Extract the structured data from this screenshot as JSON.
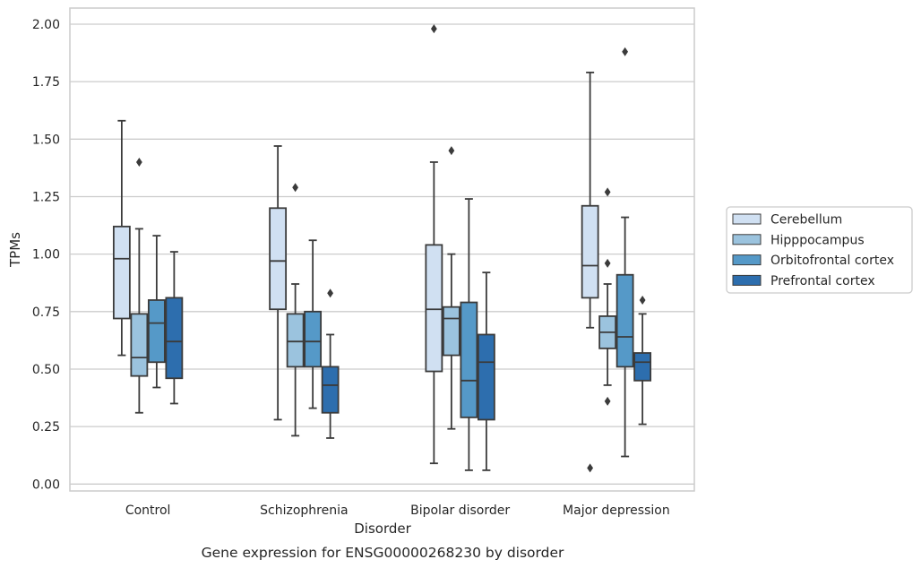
{
  "chart_data": {
    "type": "boxplot",
    "title": "",
    "caption": "Gene expression for ENSG00000268230 by disorder",
    "xlabel": "Disorder",
    "ylabel": "TPMs",
    "ylim": [
      -0.03,
      2.07
    ],
    "yticks": [
      0.0,
      0.25,
      0.5,
      0.75,
      1.0,
      1.25,
      1.5,
      1.75,
      2.0
    ],
    "ytick_labels": [
      "0.00",
      "0.25",
      "0.50",
      "0.75",
      "1.00",
      "1.25",
      "1.50",
      "1.75",
      "2.00"
    ],
    "categories": [
      "Control",
      "Schizophrenia",
      "Bipolar disorder",
      "Major depression"
    ],
    "grid": "horizontal",
    "legend_position": "right",
    "series": [
      {
        "name": "Cerebellum",
        "color": "#d0e0f2",
        "boxes": [
          {
            "whislo": 0.56,
            "q1": 0.72,
            "med": 0.98,
            "q3": 1.12,
            "whishi": 1.58,
            "fliers": []
          },
          {
            "whislo": 0.28,
            "q1": 0.76,
            "med": 0.97,
            "q3": 1.2,
            "whishi": 1.47,
            "fliers": []
          },
          {
            "whislo": 0.09,
            "q1": 0.49,
            "med": 0.76,
            "q3": 1.04,
            "whishi": 1.4,
            "fliers": [
              1.98
            ]
          },
          {
            "whislo": 0.68,
            "q1": 0.81,
            "med": 0.95,
            "q3": 1.21,
            "whishi": 1.79,
            "fliers": [
              0.07
            ]
          }
        ]
      },
      {
        "name": "Hipppocampus",
        "color": "#9bc3de",
        "boxes": [
          {
            "whislo": 0.31,
            "q1": 0.47,
            "med": 0.55,
            "q3": 0.74,
            "whishi": 1.11,
            "fliers": [
              1.4
            ]
          },
          {
            "whislo": 0.21,
            "q1": 0.51,
            "med": 0.62,
            "q3": 0.74,
            "whishi": 0.87,
            "fliers": [
              1.29
            ]
          },
          {
            "whislo": 0.24,
            "q1": 0.56,
            "med": 0.72,
            "q3": 0.77,
            "whishi": 1.0,
            "fliers": [
              1.45
            ]
          },
          {
            "whislo": 0.43,
            "q1": 0.59,
            "med": 0.66,
            "q3": 0.73,
            "whishi": 0.87,
            "fliers": [
              1.27,
              0.96,
              0.36
            ]
          }
        ]
      },
      {
        "name": "Orbitofrontal cortex",
        "color": "#5599c8",
        "boxes": [
          {
            "whislo": 0.42,
            "q1": 0.53,
            "med": 0.7,
            "q3": 0.8,
            "whishi": 1.08,
            "fliers": []
          },
          {
            "whislo": 0.33,
            "q1": 0.51,
            "med": 0.62,
            "q3": 0.75,
            "whishi": 1.06,
            "fliers": []
          },
          {
            "whislo": 0.06,
            "q1": 0.29,
            "med": 0.45,
            "q3": 0.79,
            "whishi": 1.24,
            "fliers": []
          },
          {
            "whislo": 0.12,
            "q1": 0.51,
            "med": 0.64,
            "q3": 0.91,
            "whishi": 1.16,
            "fliers": [
              1.88
            ]
          }
        ]
      },
      {
        "name": "Prefrontal cortex",
        "color": "#2d6eae",
        "boxes": [
          {
            "whislo": 0.35,
            "q1": 0.46,
            "med": 0.62,
            "q3": 0.81,
            "whishi": 1.01,
            "fliers": []
          },
          {
            "whislo": 0.2,
            "q1": 0.31,
            "med": 0.43,
            "q3": 0.51,
            "whishi": 0.65,
            "fliers": [
              0.83
            ]
          },
          {
            "whislo": 0.06,
            "q1": 0.28,
            "med": 0.53,
            "q3": 0.65,
            "whishi": 0.92,
            "fliers": []
          },
          {
            "whislo": 0.26,
            "q1": 0.45,
            "med": 0.53,
            "q3": 0.57,
            "whishi": 0.74,
            "fliers": [
              0.8
            ]
          }
        ]
      }
    ]
  }
}
